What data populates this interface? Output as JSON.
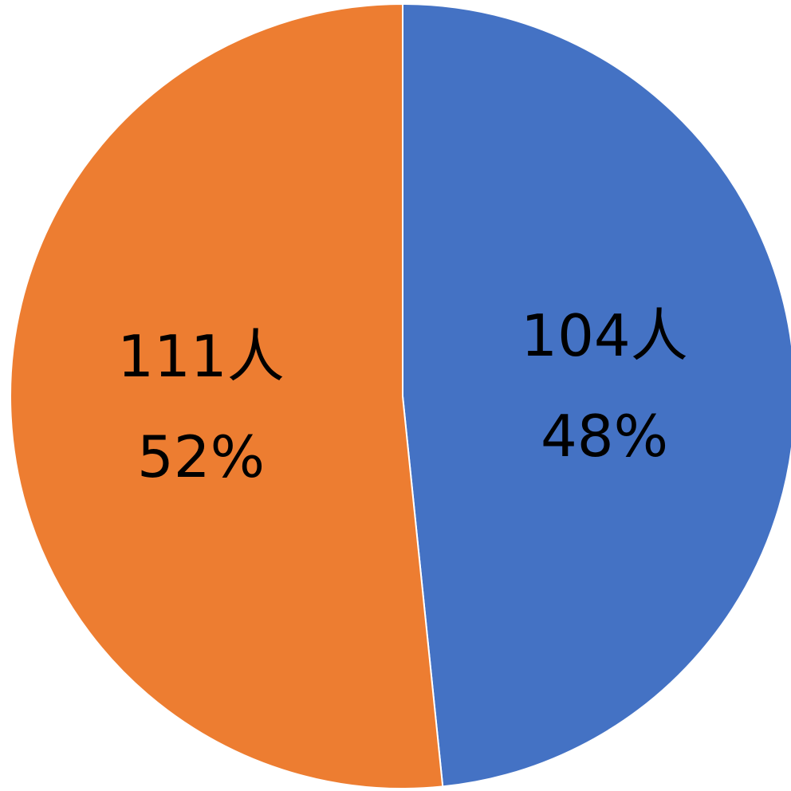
{
  "chart_data": {
    "type": "pie",
    "title": "",
    "slices": [
      {
        "value": 104,
        "count_label": "104人",
        "percent_label": "48%",
        "color": "#4472C4"
      },
      {
        "value": 111,
        "count_label": "111人",
        "percent_label": "52%",
        "color": "#ED7D31"
      }
    ],
    "start_angle": "12 o'clock",
    "direction": "clockwise",
    "legend": "none"
  }
}
